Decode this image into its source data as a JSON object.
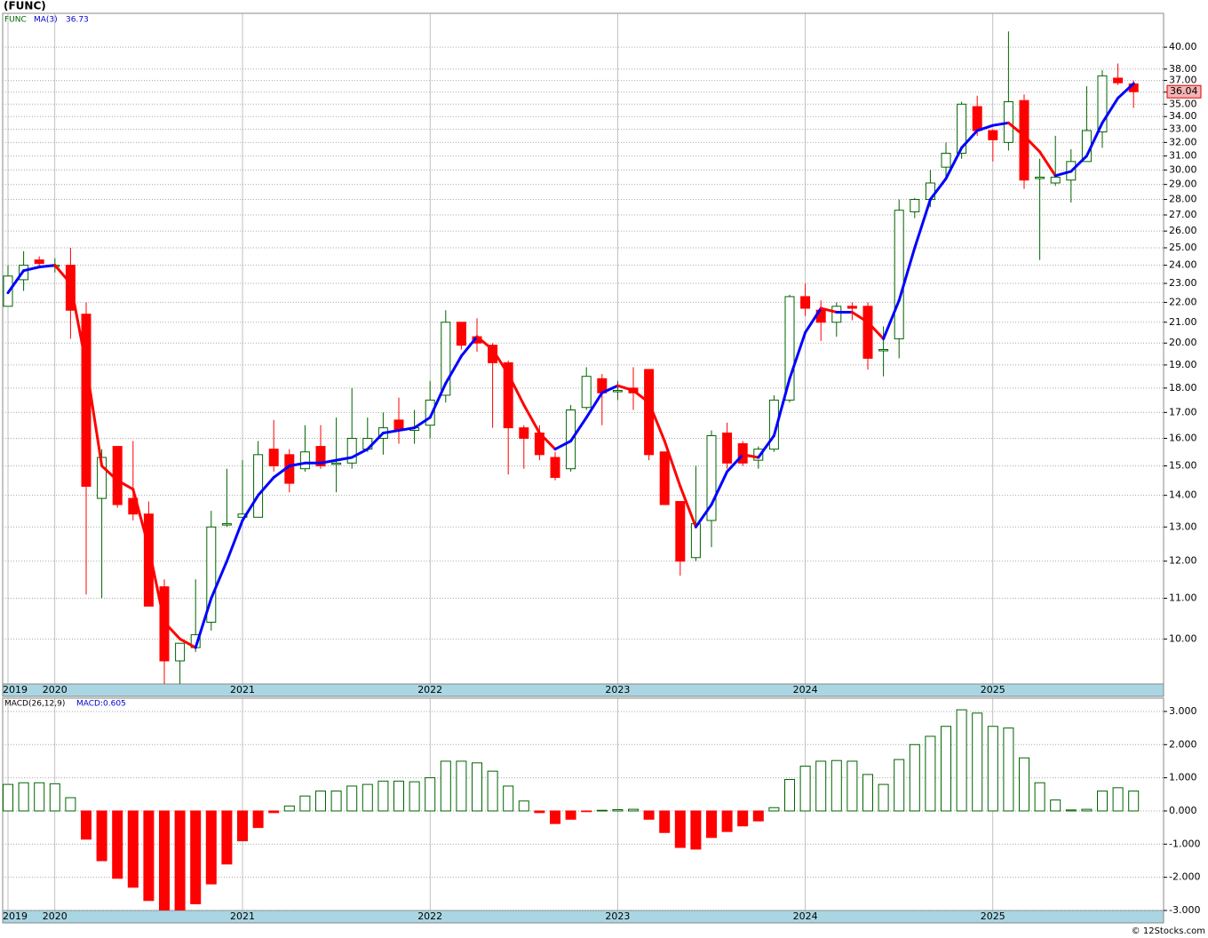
{
  "chart_data": [
    {
      "type": "candlestick",
      "title": "(FUNC)",
      "symbol": "FUNC",
      "ma_name": "MA(3)",
      "log_scale": true,
      "grid": true,
      "up_color": "#006400",
      "down_color": "#ff0000",
      "ma_up_color": "#0000ff",
      "ma_down_color": "#ff0000",
      "open": [
        21.8,
        23.2,
        24.3,
        24.0,
        24.0,
        21.4,
        13.9,
        15.7,
        13.9,
        13.4,
        11.3,
        9.5,
        9.8,
        10.4,
        13.1,
        13.3,
        13.3,
        15.6,
        15.4,
        14.9,
        15.7,
        15.1,
        15.1,
        15.6,
        16.0,
        16.7,
        16.3,
        16.5,
        17.7,
        21.0,
        20.3,
        19.9,
        19.1,
        16.4,
        16.2,
        15.3,
        14.9,
        17.2,
        18.4,
        17.9,
        18.0,
        18.8,
        15.5,
        13.8,
        12.1,
        13.2,
        16.2,
        15.8,
        15.2,
        15.6,
        17.5,
        22.3,
        21.6,
        21.0,
        21.8,
        21.8,
        19.7,
        20.2,
        27.2,
        28.0,
        30.2,
        31.2,
        34.8,
        32.9,
        32.0,
        35.3,
        29.4,
        29.1,
        29.3,
        30.6,
        32.8,
        37.2,
        36.7
      ],
      "high": [
        24.0,
        24.8,
        24.5,
        24.4,
        25.0,
        22.0,
        15.6,
        15.7,
        15.9,
        13.8,
        11.5,
        9.9,
        11.5,
        13.5,
        14.9,
        15.2,
        15.9,
        16.7,
        15.6,
        16.5,
        16.5,
        16.8,
        18.0,
        16.8,
        17.0,
        17.6,
        17.1,
        18.3,
        21.6,
        21.0,
        21.2,
        20.0,
        19.2,
        16.5,
        16.5,
        15.5,
        17.3,
        18.9,
        18.6,
        18.3,
        18.9,
        18.8,
        15.5,
        13.8,
        15.0,
        16.3,
        16.6,
        15.9,
        15.7,
        17.7,
        22.4,
        23.0,
        22.1,
        22.0,
        22.0,
        22.0,
        20.8,
        28.0,
        28.1,
        30.0,
        32.0,
        35.2,
        35.7,
        33.0,
        41.5,
        35.8,
        30.8,
        32.5,
        31.5,
        36.5,
        37.9,
        38.5,
        37.0
      ],
      "low": [
        21.8,
        22.6,
        23.9,
        23.6,
        20.2,
        11.1,
        11.0,
        13.6,
        13.2,
        10.8,
        9.0,
        9.0,
        9.7,
        10.2,
        13.0,
        13.2,
        13.3,
        14.8,
        14.1,
        14.8,
        14.9,
        14.1,
        14.9,
        15.5,
        15.4,
        15.8,
        15.8,
        16.0,
        17.4,
        19.7,
        19.6,
        16.4,
        14.7,
        14.9,
        15.2,
        14.5,
        14.8,
        17.1,
        16.5,
        17.5,
        17.1,
        15.2,
        13.7,
        11.6,
        12.0,
        12.4,
        14.9,
        15.0,
        14.9,
        15.5,
        17.4,
        21.3,
        20.1,
        20.3,
        21.1,
        18.8,
        18.5,
        19.3,
        26.8,
        27.5,
        29.5,
        30.8,
        32.5,
        30.6,
        31.4,
        28.7,
        24.3,
        28.9,
        27.8,
        30.6,
        31.6,
        36.6,
        34.7
      ],
      "close": [
        23.4,
        24.0,
        24.1,
        24.0,
        21.6,
        14.3,
        15.3,
        13.7,
        13.4,
        10.8,
        9.5,
        9.9,
        10.1,
        13.0,
        13.1,
        13.4,
        15.4,
        15.0,
        14.4,
        15.5,
        15.0,
        15.1,
        16.0,
        16.0,
        16.4,
        16.3,
        16.4,
        17.5,
        21.0,
        19.9,
        20.0,
        19.1,
        16.4,
        16.0,
        15.4,
        14.6,
        17.1,
        18.5,
        17.8,
        17.9,
        17.8,
        15.4,
        13.7,
        12.0,
        13.1,
        16.1,
        15.1,
        15.1,
        15.6,
        17.5,
        22.3,
        21.7,
        21.0,
        21.8,
        21.7,
        19.3,
        19.7,
        27.3,
        28.0,
        29.1,
        31.2,
        35.0,
        32.9,
        32.2,
        35.2,
        29.3,
        29.5,
        29.5,
        30.6,
        32.9,
        37.4,
        36.8,
        36.04
      ],
      "ma": [
        22.5,
        23.7,
        23.9,
        24.0,
        23.0,
        19.0,
        15.0,
        14.5,
        14.2,
        12.4,
        10.4,
        10.0,
        9.8,
        11.0,
        12.0,
        13.2,
        14.0,
        14.6,
        15.0,
        15.1,
        15.1,
        15.2,
        15.3,
        15.6,
        16.2,
        16.3,
        16.4,
        16.8,
        18.2,
        19.4,
        20.3,
        19.7,
        18.6,
        17.3,
        16.2,
        15.6,
        15.9,
        16.8,
        17.8,
        18.1,
        17.9,
        17.4,
        15.9,
        14.3,
        13.0,
        13.7,
        14.8,
        15.4,
        15.3,
        16.1,
        18.4,
        20.5,
        21.7,
        21.5,
        21.5,
        21.0,
        20.2,
        22.1,
        25.0,
        28.0,
        29.4,
        31.6,
        32.9,
        33.3,
        33.5,
        32.5,
        31.3,
        29.6,
        29.9,
        31.0,
        33.5,
        35.5,
        36.73
      ],
      "ylim": [
        9,
        43.3
      ],
      "yticks": [
        {
          "value": 10,
          "label": "10.00"
        },
        {
          "value": 11,
          "label": "11.00"
        },
        {
          "value": 12,
          "label": "12.00"
        },
        {
          "value": 13,
          "label": "13.00"
        },
        {
          "value": 14,
          "label": "14.00"
        },
        {
          "value": 15,
          "label": "15.00"
        },
        {
          "value": 16,
          "label": "16.00"
        },
        {
          "value": 17,
          "label": "17.00"
        },
        {
          "value": 18,
          "label": "18.00"
        },
        {
          "value": 19,
          "label": "19.00"
        },
        {
          "value": 20,
          "label": "20.00"
        },
        {
          "value": 21,
          "label": "21.00"
        },
        {
          "value": 22,
          "label": "22.00"
        },
        {
          "value": 23,
          "label": "23.00"
        },
        {
          "value": 24,
          "label": "24.00"
        },
        {
          "value": 25,
          "label": "25.00"
        },
        {
          "value": 26,
          "label": "26.00"
        },
        {
          "value": 27,
          "label": "27.00"
        },
        {
          "value": 28,
          "label": "28.00"
        },
        {
          "value": 29,
          "label": "29.00"
        },
        {
          "value": 30,
          "label": "30.00"
        },
        {
          "value": 31,
          "label": "31.00"
        },
        {
          "value": 32,
          "label": "32.00"
        },
        {
          "value": 33,
          "label": "33.00"
        },
        {
          "value": 34,
          "label": "34.00"
        },
        {
          "value": 35,
          "label": "35.00"
        },
        {
          "value": 36,
          "label": "36.00"
        },
        {
          "value": 37,
          "label": "37.00"
        },
        {
          "value": 38,
          "label": "38.00"
        },
        {
          "value": 40,
          "label": "40.00"
        }
      ],
      "xticks": [
        {
          "value": 0,
          "label": "2019"
        },
        {
          "value": 3,
          "label": "2020"
        },
        {
          "value": 15,
          "label": "2021"
        },
        {
          "value": 27,
          "label": "2022"
        },
        {
          "value": 39,
          "label": "2023"
        },
        {
          "value": 51,
          "label": "2024"
        },
        {
          "value": 63,
          "label": "2025"
        }
      ]
    },
    {
      "type": "histogram_bars",
      "name": "MACD(26,12,9)",
      "value_text": "MACD:0.605",
      "up_color": "#006400",
      "down_color": "#ff0000",
      "values": [
        0.8,
        0.85,
        0.85,
        0.82,
        0.4,
        -0.85,
        -1.5,
        -2.03,
        -2.3,
        -2.7,
        -3.0,
        -3.0,
        -2.8,
        -2.2,
        -1.6,
        -0.9,
        -0.5,
        -0.05,
        0.15,
        0.45,
        0.6,
        0.6,
        0.75,
        0.8,
        0.9,
        0.9,
        0.88,
        1.0,
        1.5,
        1.5,
        1.45,
        1.2,
        0.75,
        0.3,
        -0.05,
        -0.38,
        -0.25,
        -0.02,
        0.02,
        0.04,
        0.05,
        -0.25,
        -0.65,
        -1.1,
        -1.15,
        -0.8,
        -0.62,
        -0.45,
        -0.3,
        0.1,
        0.95,
        1.35,
        1.5,
        1.52,
        1.5,
        1.1,
        0.8,
        1.55,
        2.0,
        2.25,
        2.55,
        3.05,
        2.95,
        2.55,
        2.5,
        1.6,
        0.85,
        0.33,
        0.03,
        0.05,
        0.6,
        0.7,
        0.6
      ],
      "ylim": [
        -3,
        3.4
      ],
      "yticks": [
        {
          "value": -3,
          "label": "-3.000"
        },
        {
          "value": -2,
          "label": "-2.000"
        },
        {
          "value": -1,
          "label": "-1.000"
        },
        {
          "value": 0,
          "label": "0.000"
        },
        {
          "value": 1,
          "label": "1.000"
        },
        {
          "value": 2,
          "label": "2.000"
        },
        {
          "value": 3,
          "label": "3.000"
        }
      ]
    }
  ],
  "footer": "© 12Stocks.com"
}
